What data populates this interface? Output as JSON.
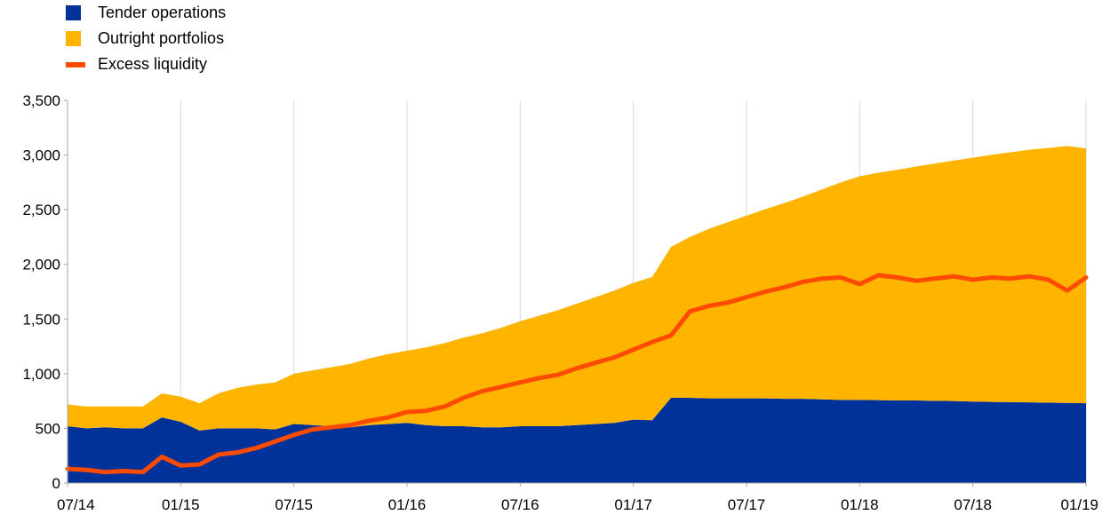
{
  "chart_data": {
    "type": "area",
    "legend_placement": "top-left",
    "grid": true,
    "ylim": [
      0,
      3500
    ],
    "yticks": [
      "0",
      "500",
      "1,000",
      "1,500",
      "2,000",
      "2,500",
      "3,000",
      "3,500"
    ],
    "xticks": [
      "07/14",
      "01/15",
      "07/15",
      "01/16",
      "07/16",
      "01/17",
      "07/17",
      "01/18",
      "07/18",
      "01/19"
    ],
    "x": [
      "2014-07",
      "2014-08",
      "2014-09",
      "2014-10",
      "2014-11",
      "2014-12",
      "2015-01",
      "2015-02",
      "2015-03",
      "2015-04",
      "2015-05",
      "2015-06",
      "2015-07",
      "2015-08",
      "2015-09",
      "2015-10",
      "2015-11",
      "2015-12",
      "2016-01",
      "2016-02",
      "2016-03",
      "2016-04",
      "2016-05",
      "2016-06",
      "2016-07",
      "2016-08",
      "2016-09",
      "2016-10",
      "2016-11",
      "2016-12",
      "2017-01",
      "2017-02",
      "2017-03",
      "2017-04",
      "2017-05",
      "2017-06",
      "2017-07",
      "2017-08",
      "2017-09",
      "2017-10",
      "2017-11",
      "2017-12",
      "2018-01",
      "2018-02",
      "2018-03",
      "2018-04",
      "2018-05",
      "2018-06",
      "2018-07",
      "2018-08",
      "2018-09",
      "2018-10",
      "2018-11",
      "2018-12",
      "2019-01"
    ],
    "series": [
      {
        "name": "Tender operations",
        "kind": "stacked-area",
        "color": "#003299",
        "values": [
          520,
          500,
          510,
          500,
          500,
          600,
          560,
          480,
          500,
          500,
          500,
          490,
          540,
          530,
          520,
          510,
          530,
          540,
          550,
          530,
          520,
          520,
          510,
          510,
          520,
          520,
          520,
          530,
          540,
          550,
          580,
          575,
          780,
          780,
          775,
          775,
          775,
          775,
          770,
          770,
          765,
          760,
          760,
          758,
          755,
          755,
          752,
          750,
          745,
          742,
          740,
          738,
          735,
          733,
          730
        ]
      },
      {
        "name": "Outright portfolios",
        "kind": "stacked-area",
        "color": "#FFB400",
        "values": [
          200,
          200,
          190,
          200,
          200,
          220,
          230,
          250,
          320,
          370,
          400,
          430,
          460,
          500,
          540,
          580,
          610,
          640,
          660,
          710,
          760,
          810,
          860,
          910,
          960,
          1010,
          1060,
          1110,
          1160,
          1210,
          1250,
          1310,
          1380,
          1470,
          1550,
          1610,
          1670,
          1730,
          1790,
          1850,
          1920,
          1990,
          2045,
          2080,
          2110,
          2140,
          2170,
          2200,
          2230,
          2260,
          2285,
          2310,
          2330,
          2350,
          2330
        ]
      },
      {
        "name": "Excess liquidity",
        "kind": "line",
        "color": "#FF4B00",
        "values": [
          130,
          120,
          100,
          110,
          100,
          240,
          160,
          170,
          260,
          280,
          320,
          380,
          440,
          490,
          510,
          530,
          570,
          600,
          650,
          660,
          700,
          780,
          840,
          880,
          920,
          960,
          990,
          1050,
          1100,
          1150,
          1220,
          1290,
          1350,
          1570,
          1620,
          1650,
          1700,
          1750,
          1790,
          1840,
          1870,
          1880,
          1820,
          1900,
          1880,
          1850,
          1870,
          1890,
          1860,
          1880,
          1870,
          1890,
          1860,
          1760,
          1880
        ]
      }
    ]
  }
}
